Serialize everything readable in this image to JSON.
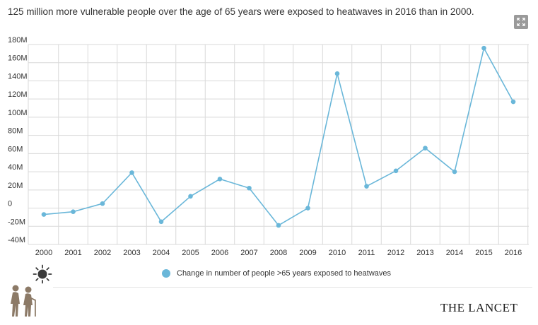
{
  "header": {
    "title": "125 million more vulnerable people over the age of 65 years were exposed to heatwaves in 2016 than in 2000."
  },
  "expand_button": {
    "icon": "expand-icon"
  },
  "brand": {
    "name": "THE LANCET"
  },
  "illustration": {
    "icons": [
      "sun-icon",
      "elderly-couple-icon"
    ]
  },
  "colors": {
    "series": "#6ab7d9",
    "grid": "#d9d9d9",
    "text": "#333333"
  },
  "chart_data": {
    "type": "line",
    "title": "125 million more vulnerable people over the age of 65 years were exposed to heatwaves in 2016 than in 2000.",
    "xlabel": "",
    "ylabel": "",
    "categories": [
      "2000",
      "2001",
      "2002",
      "2003",
      "2004",
      "2005",
      "2006",
      "2007",
      "2008",
      "2009",
      "2010",
      "2011",
      "2012",
      "2013",
      "2014",
      "2015",
      "2016"
    ],
    "y_ticks": [
      "180M",
      "160M",
      "140M",
      "120M",
      "100M",
      "80M",
      "60M",
      "40M",
      "20M",
      "0",
      "-20M",
      "-40M"
    ],
    "ylim": [
      -40000000,
      180000000
    ],
    "grid": true,
    "legend_position": "bottom",
    "series": [
      {
        "name": "Change in number of people >65 years exposed to heatwaves",
        "color": "#6ab7d9",
        "values": [
          -7000000,
          -4000000,
          5000000,
          39000000,
          -15000000,
          13000000,
          32000000,
          22000000,
          -19000000,
          0,
          148000000,
          24000000,
          41000000,
          66000000,
          40000000,
          176000000,
          117000000
        ]
      }
    ]
  }
}
